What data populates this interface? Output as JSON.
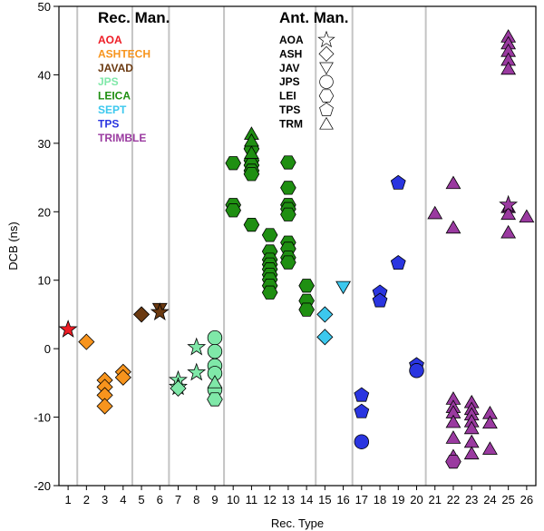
{
  "chart_data": {
    "type": "scatter",
    "title": "",
    "xlabel": "Rec. Type",
    "ylabel": "DCB (ns)",
    "xlim": [
      0.5,
      26.5
    ],
    "ylim": [
      -20,
      50
    ],
    "xticks": [
      1,
      2,
      3,
      4,
      5,
      6,
      7,
      8,
      9,
      10,
      11,
      12,
      13,
      14,
      15,
      16,
      17,
      18,
      19,
      20,
      21,
      22,
      23,
      24,
      25,
      26
    ],
    "yticks": [
      -20,
      -10,
      0,
      10,
      20,
      30,
      40,
      50
    ],
    "group_separators_x": [
      1.5,
      4.5,
      6.5,
      9.5,
      14.5,
      16.5,
      20.5
    ],
    "legend_receiver": {
      "title": "Rec. Man.",
      "entries": [
        {
          "name": "AOA",
          "color": "#ee1c25"
        },
        {
          "name": "ASHTECH",
          "color": "#f7941d"
        },
        {
          "name": "JAVAD",
          "color": "#6b3a11"
        },
        {
          "name": "JPS",
          "color": "#7fe8a8"
        },
        {
          "name": "LEICA",
          "color": "#1f8f12"
        },
        {
          "name": "SEPT",
          "color": "#3cc8ee"
        },
        {
          "name": "TPS",
          "color": "#2a35e0"
        },
        {
          "name": "TRIMBLE",
          "color": "#9a3aa0"
        }
      ]
    },
    "legend_antenna": {
      "title": "Ant. Man.",
      "entries": [
        {
          "name": "AOA",
          "symbol": "star"
        },
        {
          "name": "ASH",
          "symbol": "diamond"
        },
        {
          "name": "JAV",
          "symbol": "inverted-triangle"
        },
        {
          "name": "JPS",
          "symbol": "circle"
        },
        {
          "name": "LEI",
          "symbol": "hexagon"
        },
        {
          "name": "TPS",
          "symbol": "pentagon"
        },
        {
          "name": "TRM",
          "symbol": "triangle"
        }
      ]
    },
    "series": [
      {
        "name": "AOA receiver / AOA antenna",
        "color": "#ee1c25",
        "symbol": "star",
        "points": [
          [
            1,
            2.8
          ]
        ]
      },
      {
        "name": "ASHTECH receiver / ASH antenna",
        "color": "#f7941d",
        "symbol": "diamond",
        "points": [
          [
            2,
            1.0
          ],
          [
            3,
            -4.6
          ],
          [
            3,
            -5.6
          ],
          [
            3,
            -6.8
          ],
          [
            3,
            -8.4
          ],
          [
            4,
            -3.4
          ],
          [
            4,
            -4.2
          ]
        ]
      },
      {
        "name": "JAVAD receiver / ASH antenna",
        "color": "#6b3a11",
        "symbol": "diamond",
        "points": [
          [
            5,
            5.0
          ]
        ]
      },
      {
        "name": "JAVAD receiver / JAV antenna",
        "color": "#6b3a11",
        "symbol": "inverted-triangle",
        "points": [
          [
            6,
            5.8
          ]
        ]
      },
      {
        "name": "JAVAD receiver / AOA antenna",
        "color": "#6b3a11",
        "symbol": "star",
        "points": [
          [
            6,
            5.3
          ]
        ]
      },
      {
        "name": "JPS receiver / AOA antenna",
        "color": "#7fe8a8",
        "symbol": "star",
        "points": [
          [
            7,
            -4.6
          ],
          [
            7,
            -5.6
          ],
          [
            8,
            0.2
          ],
          [
            8,
            -3.5
          ]
        ]
      },
      {
        "name": "JPS receiver / ASH antenna",
        "color": "#7fe8a8",
        "symbol": "diamond",
        "points": [
          [
            7,
            -5.8
          ]
        ]
      },
      {
        "name": "JPS receiver / JPS antenna",
        "color": "#7fe8a8",
        "symbol": "circle",
        "points": [
          [
            9,
            1.6
          ],
          [
            9,
            -0.4
          ],
          [
            9,
            -2.5
          ],
          [
            9,
            -3.6
          ],
          [
            9,
            -6.0
          ]
        ]
      },
      {
        "name": "JPS receiver / LEI antenna",
        "color": "#7fe8a8",
        "symbol": "hexagon",
        "points": [
          [
            9,
            -7.4
          ]
        ]
      },
      {
        "name": "JPS receiver / TRM antenna",
        "color": "#7fe8a8",
        "symbol": "triangle",
        "points": [
          [
            9,
            -4.9
          ]
        ]
      },
      {
        "name": "LEICA receiver / LEI antenna",
        "color": "#1f8f12",
        "symbol": "hexagon",
        "points": [
          [
            10,
            27.1
          ],
          [
            10,
            21.0
          ],
          [
            10,
            20.2
          ],
          [
            11,
            29.2
          ],
          [
            11,
            27.5
          ],
          [
            11,
            26.8
          ],
          [
            11,
            26.0
          ],
          [
            11,
            25.5
          ],
          [
            11,
            18.1
          ],
          [
            12,
            16.6
          ],
          [
            12,
            14.2
          ],
          [
            12,
            13.0
          ],
          [
            12,
            12.3
          ],
          [
            12,
            11.6
          ],
          [
            12,
            10.8
          ],
          [
            12,
            10.1
          ],
          [
            12,
            9.2
          ],
          [
            12,
            8.2
          ],
          [
            13,
            27.2
          ],
          [
            13,
            23.5
          ],
          [
            13,
            21.0
          ],
          [
            13,
            20.4
          ],
          [
            13,
            19.6
          ],
          [
            13,
            15.5
          ],
          [
            13,
            14.6
          ],
          [
            13,
            13.3
          ],
          [
            13,
            12.6
          ],
          [
            14,
            9.2
          ],
          [
            14,
            7.0
          ],
          [
            14,
            5.7
          ]
        ]
      },
      {
        "name": "LEICA receiver / TRM antenna",
        "color": "#1f8f12",
        "symbol": "triangle",
        "points": [
          [
            11,
            31.4
          ],
          [
            11,
            30.4
          ],
          [
            11,
            28.6
          ]
        ]
      },
      {
        "name": "SEPT receiver / ASH antenna",
        "color": "#3cc8ee",
        "symbol": "diamond",
        "points": [
          [
            15,
            5.0
          ],
          [
            15,
            1.7
          ]
        ]
      },
      {
        "name": "SEPT receiver / JAV antenna",
        "color": "#3cc8ee",
        "symbol": "inverted-triangle",
        "points": [
          [
            16,
            9.0
          ]
        ]
      },
      {
        "name": "TPS receiver / TPS antenna",
        "color": "#2a35e0",
        "symbol": "pentagon",
        "points": [
          [
            17,
            -6.8
          ],
          [
            17,
            -9.2
          ],
          [
            18,
            8.2
          ],
          [
            18,
            7.0
          ],
          [
            19,
            24.2
          ],
          [
            19,
            12.5
          ],
          [
            20,
            -2.4
          ]
        ]
      },
      {
        "name": "TPS receiver / JPS antenna",
        "color": "#2a35e0",
        "symbol": "circle",
        "points": [
          [
            17,
            -13.6
          ],
          [
            20,
            -3.2
          ]
        ]
      },
      {
        "name": "TRIMBLE receiver / TRM antenna",
        "color": "#9a3aa0",
        "symbol": "triangle",
        "points": [
          [
            21,
            19.8
          ],
          [
            22,
            24.2
          ],
          [
            22,
            17.7
          ],
          [
            22,
            -7.3
          ],
          [
            22,
            -8.5
          ],
          [
            22,
            -9.3
          ],
          [
            22,
            -10.7
          ],
          [
            22,
            -13.0
          ],
          [
            22,
            -15.7
          ],
          [
            23,
            -7.8
          ],
          [
            23,
            -8.8
          ],
          [
            23,
            -9.6
          ],
          [
            23,
            -10.6
          ],
          [
            23,
            -11.6
          ],
          [
            23,
            -13.6
          ],
          [
            23,
            -15.3
          ],
          [
            24,
            -9.4
          ],
          [
            24,
            -10.8
          ],
          [
            24,
            -14.6
          ],
          [
            25,
            45.6
          ],
          [
            25,
            44.6
          ],
          [
            25,
            43.5
          ],
          [
            25,
            42.2
          ],
          [
            25,
            40.9
          ],
          [
            25,
            20.7
          ],
          [
            25,
            19.7
          ],
          [
            25,
            17.0
          ],
          [
            26,
            19.3
          ]
        ]
      },
      {
        "name": "TRIMBLE receiver / LEI antenna",
        "color": "#9a3aa0",
        "symbol": "hexagon",
        "points": [
          [
            22,
            -16.5
          ]
        ]
      },
      {
        "name": "TRIMBLE receiver / AOA antenna",
        "color": "#9a3aa0",
        "symbol": "star",
        "points": [
          [
            25,
            21.0
          ]
        ]
      }
    ]
  }
}
